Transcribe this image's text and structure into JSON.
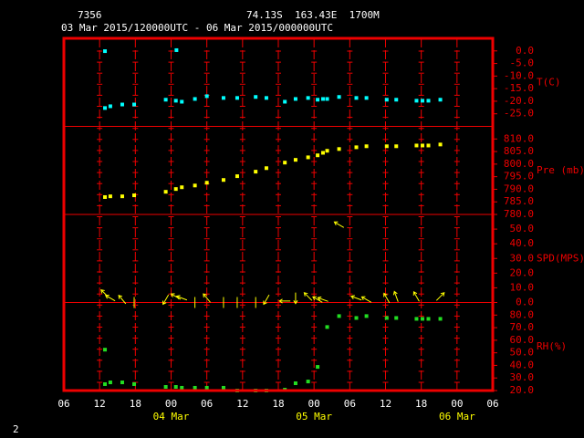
{
  "chart_data": {
    "type": "meteogram",
    "station": "7356",
    "location": "74.13S  163.43E  1700M",
    "period": "03 Mar 2015/120000UTC - 06 Mar 2015/000000UTC",
    "page_number": "2",
    "xlim": [
      0,
      72
    ],
    "xticks": [
      {
        "value": 0,
        "label": "06"
      },
      {
        "value": 6,
        "label": "12"
      },
      {
        "value": 12,
        "label": "18"
      },
      {
        "value": 18,
        "label": "00"
      },
      {
        "value": 24,
        "label": "06"
      },
      {
        "value": 30,
        "label": "12"
      },
      {
        "value": 36,
        "label": "18"
      },
      {
        "value": 42,
        "label": "00"
      },
      {
        "value": 48,
        "label": "06"
      },
      {
        "value": 54,
        "label": "12"
      },
      {
        "value": 60,
        "label": "18"
      },
      {
        "value": 66,
        "label": "00"
      },
      {
        "value": 72,
        "label": "06"
      }
    ],
    "date_labels": [
      {
        "value": 18,
        "label": "04 Mar"
      },
      {
        "value": 42,
        "label": "05 Mar"
      },
      {
        "value": 66,
        "label": "06 Mar"
      }
    ],
    "x": [
      6.9,
      6.9,
      7.8,
      9.8,
      11.8,
      17.1,
      18.8,
      18.9,
      19.8,
      22.0,
      24.0,
      26.8,
      29.1,
      32.2,
      34.0,
      37.1,
      38.9,
      41.0,
      42.6,
      43.5,
      44.2,
      46.2,
      49.1,
      50.8,
      54.2,
      55.8,
      59.2,
      60.2,
      61.2,
      63.2
    ],
    "series": [
      {
        "name": "T(C)",
        "kind": "points",
        "color": "#00ffff",
        "ylim": [
          -30,
          5
        ],
        "yticks": [
          {
            "value": 0,
            "label": "0.0"
          },
          {
            "value": -5,
            "label": "-5.0"
          },
          {
            "value": -10,
            "label": "-10.0"
          },
          {
            "value": -15,
            "label": "-15.0"
          },
          {
            "value": -20,
            "label": "-20.0"
          },
          {
            "value": -25,
            "label": "-25.0"
          }
        ],
        "values": [
          -0.1,
          -22.7,
          -22.0,
          -21.3,
          -21.3,
          -19.4,
          -19.8,
          0.3,
          -20.2,
          -19.1,
          -18.0,
          -18.7,
          -18.7,
          -18.3,
          -18.7,
          -20.2,
          -19.1,
          -18.7,
          -19.4,
          -19.1,
          -19.1,
          -18.3,
          -18.7,
          -18.7,
          -19.4,
          -19.4,
          -19.8,
          -19.8,
          -19.8,
          -19.4
        ]
      },
      {
        "name": "Pre (mb)",
        "kind": "points",
        "color": "#ffff00",
        "ylim": [
          780,
          815
        ],
        "yticks": [
          {
            "value": 810,
            "label": "810.0"
          },
          {
            "value": 805,
            "label": "805.0"
          },
          {
            "value": 800,
            "label": "800.0"
          },
          {
            "value": 795,
            "label": "795.0"
          },
          {
            "value": 790,
            "label": "790.0"
          },
          {
            "value": 785,
            "label": "785.0"
          },
          {
            "value": 780,
            "label": "780.0"
          }
        ],
        "values": [
          null,
          786.9,
          787.2,
          787.2,
          787.6,
          789.0,
          790.1,
          null,
          790.8,
          791.5,
          792.6,
          793.7,
          795.2,
          797.0,
          798.4,
          800.6,
          801.7,
          802.7,
          803.5,
          804.5,
          805.3,
          806.0,
          806.7,
          807.1,
          807.1,
          807.1,
          807.4,
          807.4,
          807.4,
          807.8
        ]
      },
      {
        "name": "SPD(MPS)",
        "kind": "arrows",
        "color": "#ffff00",
        "ylim": [
          0,
          60
        ],
        "yticks": [
          {
            "value": 50,
            "label": "50.0"
          },
          {
            "value": 40,
            "label": "40.0"
          },
          {
            "value": 30,
            "label": "30.0"
          },
          {
            "value": 20,
            "label": "20.0"
          },
          {
            "value": 10,
            "label": "10.0"
          },
          {
            "value": 0,
            "label": "0.0"
          }
        ],
        "values": [
          null,
          6,
          3,
          2,
          0,
          2,
          4,
          null,
          3,
          0,
          3,
          0,
          0,
          0,
          2,
          1,
          3,
          4,
          2,
          2,
          null,
          53,
          3,
          2,
          3,
          4,
          4,
          null,
          null,
          4
        ],
        "direction": [
          null,
          315,
          300,
          320,
          0,
          210,
          300,
          null,
          290,
          0,
          320,
          0,
          0,
          0,
          210,
          270,
          180,
          315,
          300,
          290,
          null,
          300,
          290,
          300,
          330,
          340,
          330,
          null,
          null,
          45
        ]
      },
      {
        "name": "RH(%)",
        "kind": "points",
        "color": "#22dd22",
        "ylim": [
          20,
          90
        ],
        "yticks": [
          {
            "value": 80,
            "label": "80.0"
          },
          {
            "value": 70,
            "label": "70.0"
          },
          {
            "value": 60,
            "label": "60.0"
          },
          {
            "value": 50,
            "label": "50.0"
          },
          {
            "value": 40,
            "label": "40.0"
          },
          {
            "value": 30,
            "label": "30.0"
          },
          {
            "value": 20,
            "label": "20.0"
          }
        ],
        "values": [
          52.5,
          25.1,
          26.5,
          26.5,
          25.1,
          22.9,
          22.9,
          null,
          22.2,
          22.2,
          22.2,
          22.2,
          20.0,
          20.0,
          20.0,
          20.7,
          25.8,
          27.2,
          38.8,
          null,
          70.5,
          79.2,
          77.7,
          79.2,
          77.7,
          77.7,
          77.0,
          77.0,
          77.0,
          77.0
        ]
      }
    ]
  }
}
